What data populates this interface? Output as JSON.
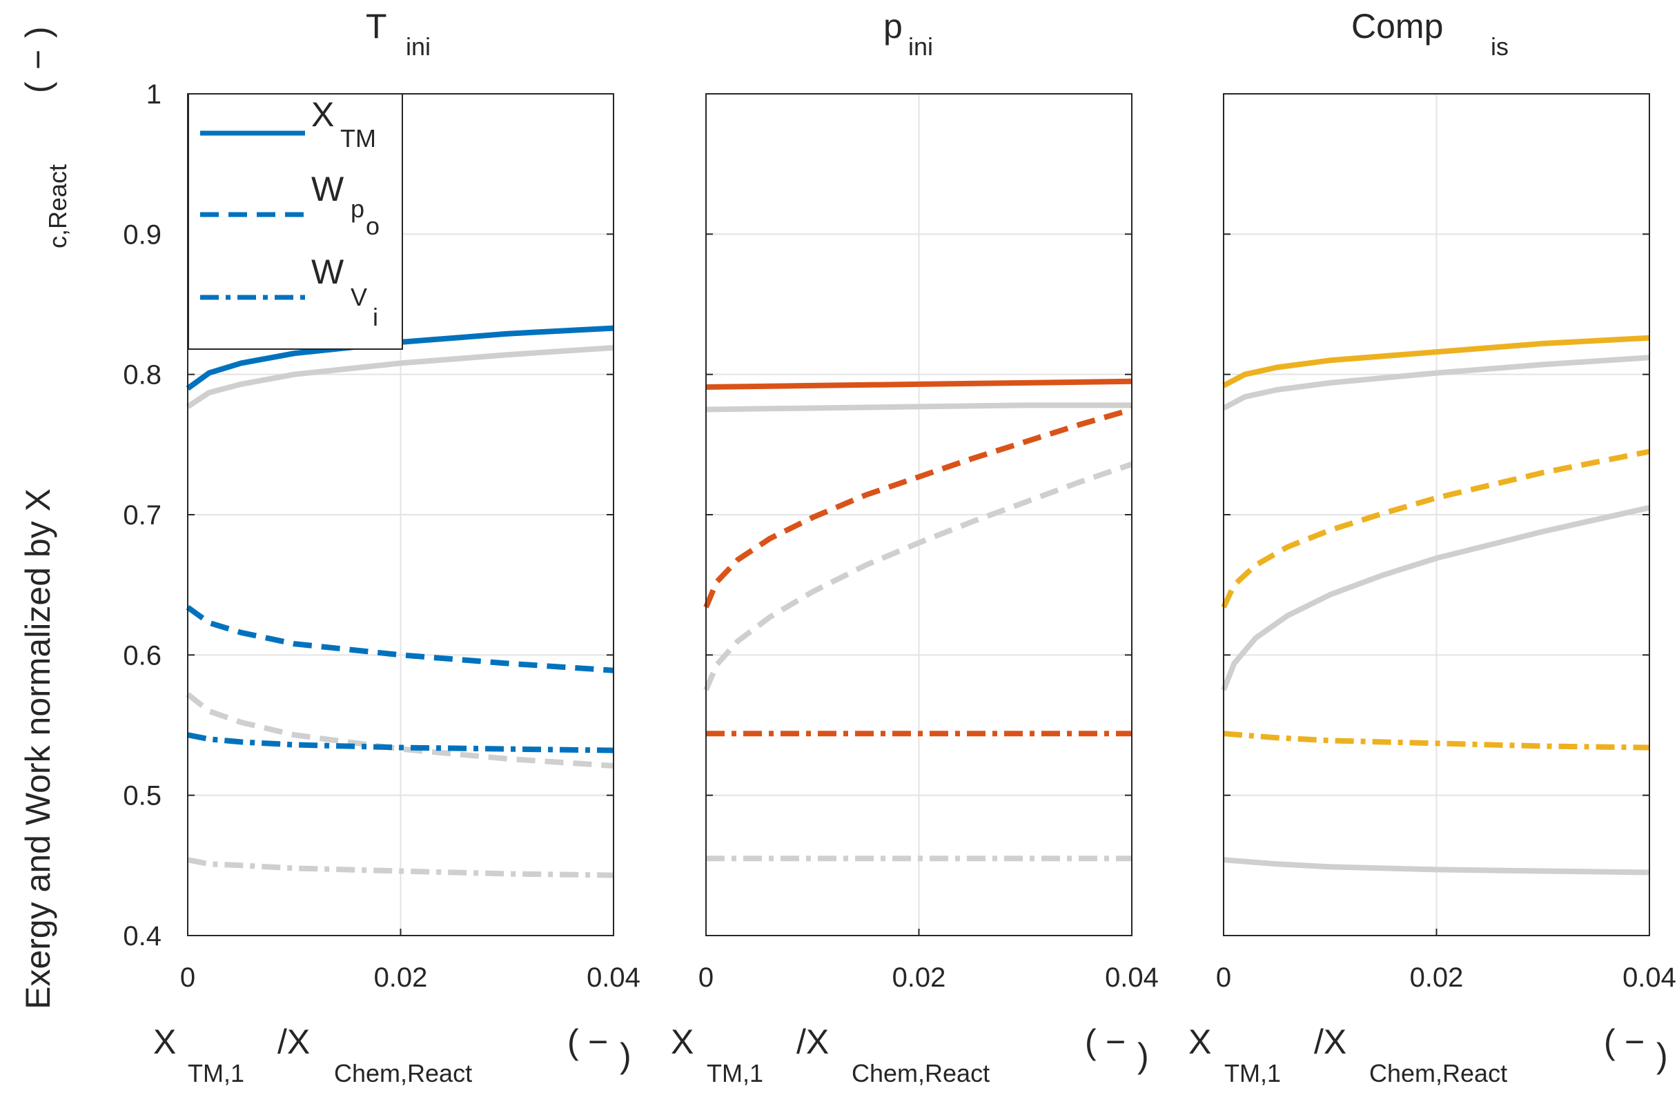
{
  "figure": {
    "ylabel_main": "Exergy and Work normalized by X",
    "ylabel_sub": "c,React",
    "ylabel_unit_open": "(",
    "ylabel_unit_dash": "−",
    "ylabel_unit_close": ")",
    "xlabel_main": "X",
    "xlabel_sub1": "TM,1",
    "xlabel_slash": "/X",
    "xlabel_sub2": "Chem,React",
    "xlabel_unit_open": "(",
    "xlabel_unit_dash": "−",
    "xlabel_unit_close": ")"
  },
  "legend": {
    "placement": "top-left of first panel",
    "entries": [
      {
        "main": "X",
        "sub": "TM",
        "style": "solid"
      },
      {
        "main": "W",
        "sub": "p",
        "subsub": "o",
        "style": "dashed"
      },
      {
        "main": "W",
        "sub": "V",
        "subsub": "i",
        "style": "dashdot"
      }
    ]
  },
  "chart_data": [
    {
      "type": "line",
      "title_main": "T",
      "title_sub": "ini",
      "color": "#0072BD",
      "xlim": [
        0,
        0.04
      ],
      "ylim": [
        0.4,
        1.0
      ],
      "xticks": [
        "0",
        "0.02",
        "0.04"
      ],
      "yticks": [
        "0.4",
        "0.5",
        "0.6",
        "0.7",
        "0.8",
        "0.9",
        "1"
      ],
      "grid": true,
      "series": [
        {
          "style": "solid",
          "color": "#0072BD",
          "x": [
            0,
            0.002,
            0.005,
            0.01,
            0.02,
            0.03,
            0.04
          ],
          "y": [
            0.79,
            0.801,
            0.808,
            0.815,
            0.823,
            0.829,
            0.833
          ]
        },
        {
          "style": "solid",
          "color": "#cfcfcf",
          "x": [
            0,
            0.002,
            0.005,
            0.01,
            0.02,
            0.03,
            0.04
          ],
          "y": [
            0.777,
            0.787,
            0.793,
            0.8,
            0.808,
            0.814,
            0.819
          ]
        },
        {
          "style": "dashed",
          "color": "#0072BD",
          "x": [
            0,
            0.002,
            0.005,
            0.01,
            0.02,
            0.03,
            0.04
          ],
          "y": [
            0.634,
            0.623,
            0.616,
            0.608,
            0.6,
            0.594,
            0.589
          ]
        },
        {
          "style": "dashed",
          "color": "#cfcfcf",
          "x": [
            0,
            0.002,
            0.005,
            0.01,
            0.02,
            0.03,
            0.04
          ],
          "y": [
            0.572,
            0.56,
            0.552,
            0.543,
            0.533,
            0.526,
            0.521
          ]
        },
        {
          "style": "dashdot",
          "color": "#0072BD",
          "x": [
            0,
            0.002,
            0.005,
            0.01,
            0.02,
            0.03,
            0.04
          ],
          "y": [
            0.543,
            0.54,
            0.538,
            0.536,
            0.534,
            0.533,
            0.532
          ]
        },
        {
          "style": "dashdot",
          "color": "#cfcfcf",
          "x": [
            0,
            0.002,
            0.005,
            0.01,
            0.02,
            0.03,
            0.04
          ],
          "y": [
            0.454,
            0.451,
            0.45,
            0.448,
            0.446,
            0.444,
            0.443
          ]
        }
      ]
    },
    {
      "type": "line",
      "title_main": "p",
      "title_sub": "ini",
      "color": "#D95319",
      "xlim": [
        0,
        0.04
      ],
      "ylim": [
        0.4,
        1.0
      ],
      "xticks": [
        "0",
        "0.02",
        "0.04"
      ],
      "yticks": [
        "0.4",
        "0.5",
        "0.6",
        "0.7",
        "0.8",
        "0.9",
        "1"
      ],
      "grid": true,
      "series": [
        {
          "style": "solid",
          "color": "#D95319",
          "x": [
            0,
            0.01,
            0.02,
            0.03,
            0.04
          ],
          "y": [
            0.791,
            0.792,
            0.793,
            0.794,
            0.795
          ]
        },
        {
          "style": "solid",
          "color": "#cfcfcf",
          "x": [
            0,
            0.01,
            0.02,
            0.03,
            0.04
          ],
          "y": [
            0.775,
            0.776,
            0.777,
            0.778,
            0.778
          ]
        },
        {
          "style": "dashed",
          "color": "#D95319",
          "x": [
            0,
            0.001,
            0.003,
            0.006,
            0.01,
            0.015,
            0.02,
            0.025,
            0.03,
            0.035,
            0.04
          ],
          "y": [
            0.634,
            0.652,
            0.668,
            0.683,
            0.698,
            0.714,
            0.727,
            0.74,
            0.752,
            0.764,
            0.775
          ]
        },
        {
          "style": "dashed",
          "color": "#cfcfcf",
          "x": [
            0,
            0.001,
            0.003,
            0.006,
            0.01,
            0.015,
            0.02,
            0.025,
            0.03,
            0.035,
            0.04
          ],
          "y": [
            0.575,
            0.593,
            0.61,
            0.627,
            0.645,
            0.664,
            0.68,
            0.695,
            0.709,
            0.723,
            0.736
          ]
        },
        {
          "style": "dashdot",
          "color": "#D95319",
          "x": [
            0,
            0.04
          ],
          "y": [
            0.544,
            0.544
          ]
        },
        {
          "style": "dashdot",
          "color": "#cfcfcf",
          "x": [
            0,
            0.04
          ],
          "y": [
            0.455,
            0.455
          ]
        }
      ]
    },
    {
      "type": "line",
      "title_main": "Comp",
      "title_sub": "is",
      "color": "#EDB120",
      "xlim": [
        0,
        0.04
      ],
      "ylim": [
        0.4,
        1.0
      ],
      "xticks": [
        "0",
        "0.02",
        "0.04"
      ],
      "yticks": [
        "0.4",
        "0.5",
        "0.6",
        "0.7",
        "0.8",
        "0.9",
        "1"
      ],
      "grid": true,
      "series": [
        {
          "style": "solid",
          "color": "#EDB120",
          "x": [
            0,
            0.002,
            0.005,
            0.01,
            0.02,
            0.03,
            0.04
          ],
          "y": [
            0.792,
            0.8,
            0.805,
            0.81,
            0.816,
            0.822,
            0.826
          ]
        },
        {
          "style": "solid",
          "color": "#cfcfcf",
          "x": [
            0,
            0.002,
            0.005,
            0.01,
            0.02,
            0.03,
            0.04
          ],
          "y": [
            0.776,
            0.784,
            0.789,
            0.794,
            0.801,
            0.807,
            0.812
          ]
        },
        {
          "style": "dashed",
          "color": "#EDB120",
          "x": [
            0,
            0.001,
            0.003,
            0.006,
            0.01,
            0.015,
            0.02,
            0.03,
            0.04
          ],
          "y": [
            0.634,
            0.65,
            0.664,
            0.677,
            0.689,
            0.701,
            0.712,
            0.73,
            0.745
          ]
        },
        {
          "style": "solid",
          "color": "#cfcfcf",
          "x": [
            0,
            0.001,
            0.003,
            0.006,
            0.01,
            0.015,
            0.02,
            0.03,
            0.04
          ],
          "y": [
            0.575,
            0.594,
            0.612,
            0.628,
            0.643,
            0.657,
            0.669,
            0.688,
            0.705
          ]
        },
        {
          "style": "dashdot",
          "color": "#EDB120",
          "x": [
            0,
            0.005,
            0.01,
            0.02,
            0.03,
            0.04
          ],
          "y": [
            0.544,
            0.541,
            0.539,
            0.537,
            0.535,
            0.534
          ]
        },
        {
          "style": "solid",
          "color": "#cfcfcf",
          "x": [
            0,
            0.005,
            0.01,
            0.02,
            0.03,
            0.04
          ],
          "y": [
            0.454,
            0.451,
            0.449,
            0.447,
            0.446,
            0.445
          ]
        }
      ]
    }
  ]
}
